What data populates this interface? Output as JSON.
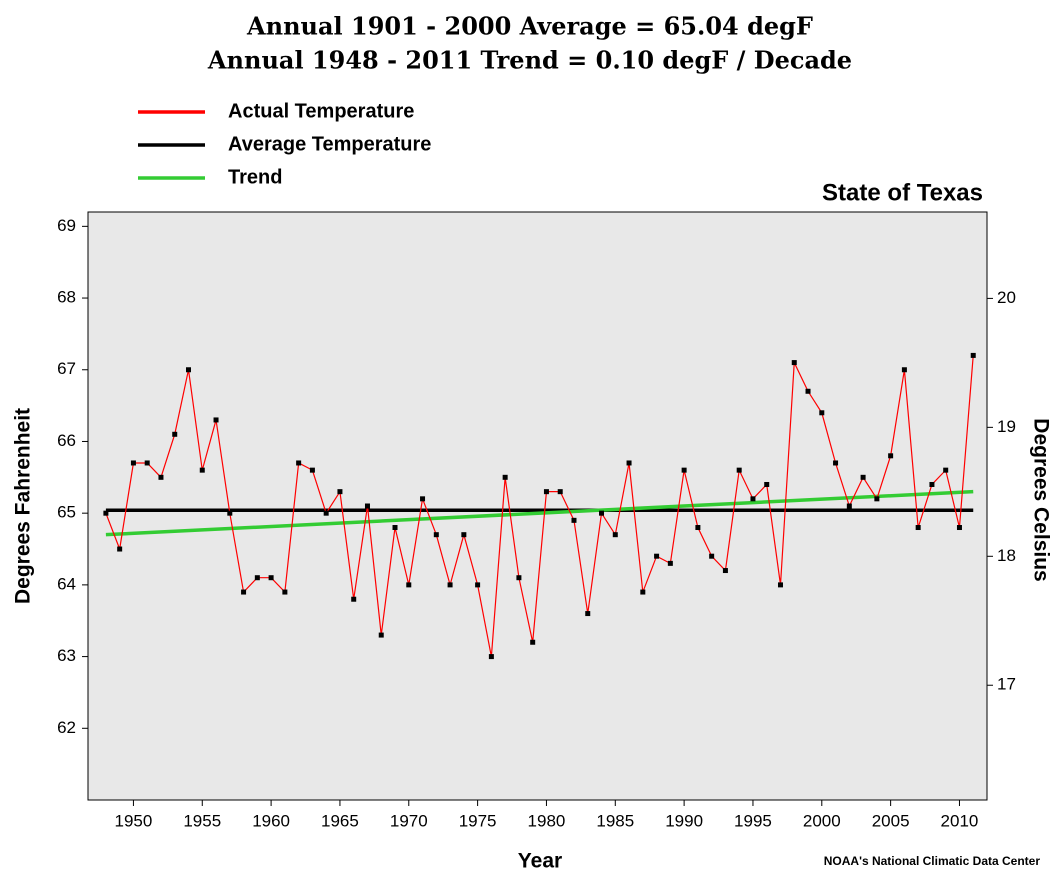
{
  "chart_data": {
    "type": "line",
    "title": "Annual 1901 - 2000 Average = 65.04 degF",
    "subtitle": "Annual 1948 - 2011 Trend = 0.10 degF / Decade",
    "region": "State of Texas",
    "x_label": "Year",
    "y_label": "Degrees Fahrenheit",
    "y2_label": "Degrees Celsius",
    "source": "NOAA's National Climatic Data Center",
    "xlim": [
      1946.7,
      2012
    ],
    "xticks": [
      1950,
      1955,
      1960,
      1965,
      1970,
      1975,
      1980,
      1985,
      1990,
      1995,
      2000,
      2005,
      2010
    ],
    "ylim": [
      61,
      69.2
    ],
    "yticks": [
      62,
      63,
      64,
      65,
      66,
      67,
      68,
      69
    ],
    "y2lim": [
      16.11,
      20.67
    ],
    "y2ticks": [
      17,
      18,
      19,
      20
    ],
    "background": "#e8e8e8",
    "series": [
      {
        "name": "Actual Temperature",
        "color": "#ff0000",
        "markers": true,
        "x": [
          1948,
          1949,
          1950,
          1951,
          1952,
          1953,
          1954,
          1955,
          1956,
          1957,
          1958,
          1959,
          1960,
          1961,
          1962,
          1963,
          1964,
          1965,
          1966,
          1967,
          1968,
          1969,
          1970,
          1971,
          1972,
          1973,
          1974,
          1975,
          1976,
          1977,
          1978,
          1979,
          1980,
          1981,
          1982,
          1983,
          1984,
          1985,
          1986,
          1987,
          1988,
          1989,
          1990,
          1991,
          1992,
          1993,
          1994,
          1995,
          1996,
          1997,
          1998,
          1999,
          2000,
          2001,
          2002,
          2003,
          2004,
          2005,
          2006,
          2007,
          2008,
          2009,
          2010,
          2011
        ],
        "values": [
          65.0,
          64.5,
          65.7,
          65.7,
          65.5,
          66.1,
          67.0,
          65.6,
          66.3,
          65.0,
          63.9,
          64.1,
          64.1,
          63.9,
          65.7,
          65.6,
          65.0,
          65.3,
          63.8,
          65.1,
          63.3,
          64.8,
          64.0,
          65.2,
          64.7,
          64.0,
          64.7,
          64.0,
          63.0,
          65.5,
          64.1,
          63.2,
          65.3,
          65.3,
          64.9,
          63.6,
          65.0,
          64.7,
          65.7,
          63.9,
          64.4,
          64.3,
          65.6,
          64.8,
          64.4,
          64.2,
          65.6,
          65.2,
          65.4,
          64.0,
          67.1,
          66.7,
          66.4,
          65.7,
          65.1,
          65.5,
          65.2,
          65.8,
          67.0,
          64.8,
          65.4,
          65.6,
          64.8,
          67.2
        ]
      },
      {
        "name": "Average Temperature",
        "color": "#000000",
        "markers": false,
        "x": [
          1948,
          2011
        ],
        "values": [
          65.04,
          65.04
        ]
      },
      {
        "name": "Trend",
        "color": "#33cc33",
        "markers": false,
        "x": [
          1948,
          2011
        ],
        "values": [
          64.7,
          65.3
        ]
      }
    ]
  }
}
